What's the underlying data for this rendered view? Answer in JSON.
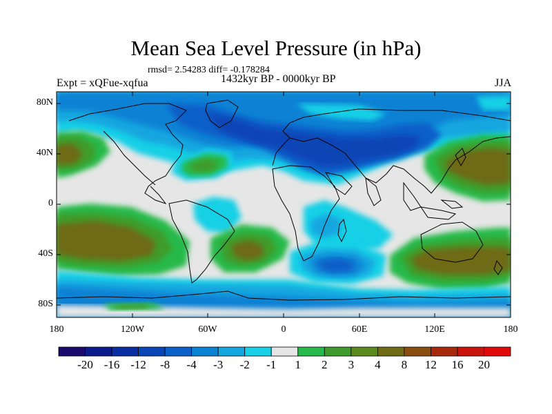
{
  "title": "Mean Sea Level Pressure (in hPa)",
  "stats": "rmsd= 2.54283 diff= -0.178284",
  "experiment": "Expt = xQFue-xqfua",
  "period": "1432kyr BP - 0000kyr BP",
  "season": "JJA",
  "lat_labels": [
    "80N",
    "40N",
    "0",
    "40S",
    "80S"
  ],
  "lon_labels": [
    "180",
    "120W",
    "60W",
    "0",
    "60E",
    "120E",
    "180"
  ],
  "colorbar": {
    "labels": [
      "-20",
      "-16",
      "-12",
      "-8",
      "-4",
      "-3",
      "-2",
      "-1",
      "1",
      "2",
      "3",
      "4",
      "8",
      "12",
      "16",
      "20"
    ],
    "colors": [
      "#1b0a6e",
      "#0d1a8c",
      "#0a2fa3",
      "#0a45b5",
      "#0a5fc8",
      "#0a82d4",
      "#16a6df",
      "#19d0e6",
      "#e6e6e6",
      "#27b94a",
      "#3f9b2c",
      "#5a8a1d",
      "#6e6b14",
      "#8a4e10",
      "#a82a0c",
      "#c8140a",
      "#e00a0a"
    ]
  },
  "colors": {
    "neutral": "#e6e6e6",
    "ocean_low1": "#19d0e6",
    "ocean_low2": "#16a6df",
    "ocean_low3": "#0a82d4",
    "ocean_low4": "#0a5fc8",
    "ocean_low5": "#0a45b5",
    "high1": "#27b94a",
    "high2": "#3f9b2c",
    "high3": "#6e6b14",
    "coast": "#000000"
  }
}
